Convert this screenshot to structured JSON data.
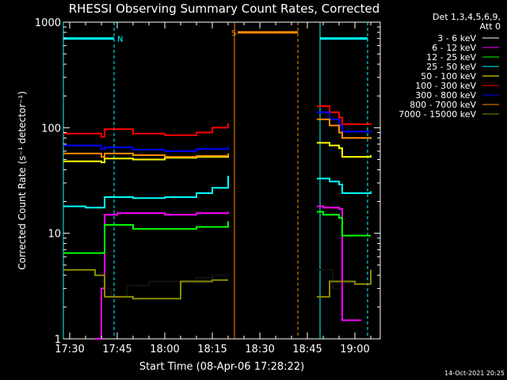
{
  "chart_data": {
    "type": "line",
    "title": "RHESSI Observing Summary Count Rates, Corrected",
    "ylabel": "Corrected Count Rate (s⁻¹ detector⁻¹)",
    "xlabel": "Start Time (08-Apr-06 17:28:22)",
    "footer": "14-Oct-2021 20:25",
    "y_scale": "log",
    "ylim": [
      1,
      1000
    ],
    "xlim": [
      "17:28",
      "19:08"
    ],
    "y_ticks": [
      {
        "value": 1,
        "label": "1"
      },
      {
        "value": 10,
        "label": "10"
      },
      {
        "value": 100,
        "label": "100"
      },
      {
        "value": 1000,
        "label": "1000"
      }
    ],
    "x_ticks": [
      {
        "value": "17:30",
        "label": "17:30"
      },
      {
        "value": "17:45",
        "label": "17:45"
      },
      {
        "value": "18:00",
        "label": "18:00"
      },
      {
        "value": "18:15",
        "label": "18:15"
      },
      {
        "value": "18:30",
        "label": "18:30"
      },
      {
        "value": "18:45",
        "label": "18:45"
      },
      {
        "value": "19:00",
        "label": "19:00"
      }
    ],
    "legend_header": [
      "Det 1,3,4,5,6,9,",
      "Att 0"
    ],
    "legend_position": "right",
    "series": [
      {
        "name": "3 - 6 keV",
        "color": "#000000",
        "points": [
          [
            "17:40",
            3.5
          ],
          [
            "17:41",
            3.0
          ],
          [
            "17:43",
            2.5
          ],
          [
            "17:48",
            3.2
          ],
          [
            "17:55",
            3.5
          ],
          [
            "18:05",
            3.5
          ],
          [
            "18:10",
            3.8
          ],
          [
            "18:15",
            4.0
          ],
          [
            "18:20",
            4.2
          ],
          [
            "18:48",
            4.5
          ],
          [
            "18:49",
            4.5
          ],
          [
            "18:53",
            3.0
          ],
          [
            "18:55",
            3.0
          ]
        ]
      },
      {
        "name": "6 - 12 keV",
        "color": "#ff00ff",
        "points": [
          [
            "17:38",
            1.0
          ],
          [
            "17:39",
            1.0
          ],
          [
            "17:40",
            3.0
          ],
          [
            "17:41",
            15
          ],
          [
            "17:45",
            15.5
          ],
          [
            "18:00",
            15
          ],
          [
            "18:10",
            15.5
          ],
          [
            "18:20",
            16
          ],
          [
            "18:48",
            18
          ],
          [
            "18:50",
            17.5
          ],
          [
            "18:55",
            17
          ],
          [
            "18:56",
            1.5
          ],
          [
            "19:00",
            1.5
          ],
          [
            "19:02",
            1.5
          ]
        ]
      },
      {
        "name": "12 - 25 keV",
        "color": "#00ff00",
        "points": [
          [
            "17:28",
            6.5
          ],
          [
            "17:35",
            6.5
          ],
          [
            "17:40",
            6.5
          ],
          [
            "17:41",
            12
          ],
          [
            "17:50",
            11
          ],
          [
            "18:00",
            11
          ],
          [
            "18:10",
            11.5
          ],
          [
            "18:20",
            13
          ],
          [
            "18:48",
            16
          ],
          [
            "18:50",
            15
          ],
          [
            "18:55",
            14
          ],
          [
            "18:56",
            9.5
          ],
          [
            "19:05",
            9.5
          ]
        ]
      },
      {
        "name": "25 - 50 keV",
        "color": "#00ffff",
        "points": [
          [
            "17:28",
            18
          ],
          [
            "17:35",
            17.5
          ],
          [
            "17:40",
            17.5
          ],
          [
            "17:41",
            22
          ],
          [
            "17:50",
            21.5
          ],
          [
            "18:00",
            22
          ],
          [
            "18:10",
            24
          ],
          [
            "18:15",
            27
          ],
          [
            "18:20",
            35
          ],
          [
            "18:48",
            33
          ],
          [
            "18:52",
            31
          ],
          [
            "18:55",
            29
          ],
          [
            "18:56",
            24
          ],
          [
            "19:05",
            25
          ]
        ]
      },
      {
        "name": "50 - 100 keV",
        "color": "#ffff00",
        "points": [
          [
            "17:28",
            48
          ],
          [
            "17:40",
            47
          ],
          [
            "17:41",
            51
          ],
          [
            "17:50",
            50
          ],
          [
            "18:00",
            52
          ],
          [
            "18:10",
            53
          ],
          [
            "18:20",
            57
          ],
          [
            "18:48",
            72
          ],
          [
            "18:52",
            68
          ],
          [
            "18:55",
            64
          ],
          [
            "18:56",
            53
          ],
          [
            "19:05",
            55
          ]
        ]
      },
      {
        "name": "100 - 300 keV",
        "color": "#ff0000",
        "points": [
          [
            "17:28",
            88
          ],
          [
            "17:40",
            82
          ],
          [
            "17:41",
            97
          ],
          [
            "17:50",
            88
          ],
          [
            "18:00",
            85
          ],
          [
            "18:10",
            90
          ],
          [
            "18:15",
            100
          ],
          [
            "18:20",
            110
          ],
          [
            "18:48",
            160
          ],
          [
            "18:52",
            140
          ],
          [
            "18:55",
            125
          ],
          [
            "18:56",
            108
          ],
          [
            "19:05",
            110
          ]
        ]
      },
      {
        "name": "300 - 800 keV",
        "color": "#0000ff",
        "points": [
          [
            "17:28",
            68
          ],
          [
            "17:40",
            63
          ],
          [
            "17:41",
            65
          ],
          [
            "17:50",
            62
          ],
          [
            "18:00",
            60
          ],
          [
            "18:10",
            63
          ],
          [
            "18:20",
            66
          ],
          [
            "18:48",
            140
          ],
          [
            "18:52",
            120
          ],
          [
            "18:55",
            105
          ],
          [
            "18:56",
            92
          ],
          [
            "19:05",
            90
          ]
        ]
      },
      {
        "name": "800 - 7000 keV",
        "color": "#ff8c00",
        "points": [
          [
            "17:28",
            57
          ],
          [
            "17:40",
            53
          ],
          [
            "17:41",
            57
          ],
          [
            "17:50",
            55
          ],
          [
            "18:00",
            53
          ],
          [
            "18:10",
            54
          ],
          [
            "18:20",
            57
          ],
          [
            "18:48",
            120
          ],
          [
            "18:52",
            105
          ],
          [
            "18:55",
            90
          ],
          [
            "18:56",
            80
          ],
          [
            "19:05",
            78
          ]
        ]
      },
      {
        "name": "7000 - 15000 keV",
        "color": "#8b8b00",
        "points": [
          [
            "17:28",
            4.5
          ],
          [
            "17:35",
            4.5
          ],
          [
            "17:38",
            4.0
          ],
          [
            "17:41",
            2.5
          ],
          [
            "17:50",
            2.4
          ],
          [
            "18:00",
            2.4
          ],
          [
            "18:05",
            3.5
          ],
          [
            "18:15",
            3.6
          ],
          [
            "18:20",
            3.6
          ],
          [
            "18:48",
            2.5
          ],
          [
            "18:52",
            3.5
          ],
          [
            "18:55",
            3.5
          ],
          [
            "19:00",
            3.3
          ],
          [
            "19:05",
            4.5
          ]
        ]
      }
    ],
    "status_bars": [
      {
        "label": "N",
        "color": "#00ffff",
        "start": "17:28",
        "end": "17:44",
        "level": 700
      },
      {
        "label": "S",
        "color": "#ff8c00",
        "start": "18:23",
        "end": "18:42",
        "level": 800
      },
      {
        "label": "",
        "color": "#00ffff",
        "start": "18:49",
        "end": "19:04",
        "level": 700
      }
    ],
    "event_markers": [
      {
        "time": "17:28",
        "color": "#00ffff",
        "style": "solid"
      },
      {
        "time": "17:44",
        "color": "#00ffff",
        "style": "dashed"
      },
      {
        "time": "18:22",
        "color": "#ff8c00",
        "style": "solid"
      },
      {
        "time": "18:42",
        "color": "#ff8c00",
        "style": "dashed"
      },
      {
        "time": "18:49",
        "color": "#00ffff",
        "style": "solid"
      },
      {
        "time": "19:04",
        "color": "#00ffff",
        "style": "dashed"
      }
    ]
  }
}
